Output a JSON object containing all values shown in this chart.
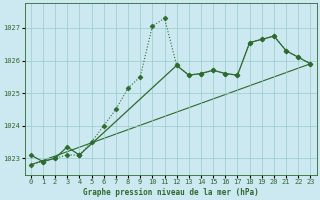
{
  "title": "Graphe pression niveau de la mer (hPa)",
  "background_color": "#cce8f0",
  "grid_color": "#99cccc",
  "line_color": "#2d6a2d",
  "x": [
    0,
    1,
    2,
    3,
    4,
    5,
    6,
    7,
    8,
    9,
    10,
    11,
    12,
    13,
    14,
    15,
    16,
    17,
    18,
    19,
    20,
    21,
    22,
    23
  ],
  "dotted": [
    1022.8,
    1022.9,
    1023.0,
    1023.1,
    1023.1,
    1023.5,
    1024.0,
    1024.5,
    1025.15,
    1025.5,
    1027.05,
    1027.3,
    1025.85,
    1025.55,
    1025.6,
    1025.7,
    1025.6,
    1025.55,
    1026.55,
    1026.65,
    1026.75,
    1026.3,
    1026.1,
    1025.9
  ],
  "solid_seg1_x": [
    0,
    1,
    2,
    3,
    4
  ],
  "solid_seg1_y": [
    1023.1,
    1022.9,
    1023.0,
    1023.35,
    1023.1
  ],
  "solid_seg2_x": [
    4,
    12,
    13,
    14,
    15,
    16,
    17,
    18,
    19,
    20,
    21,
    22,
    23
  ],
  "solid_seg2_y": [
    1023.1,
    1025.85,
    1025.55,
    1025.6,
    1025.7,
    1025.6,
    1025.55,
    1026.55,
    1026.65,
    1026.75,
    1026.3,
    1026.1,
    1025.9
  ],
  "trend_x": [
    0,
    23
  ],
  "trend_y": [
    1022.8,
    1025.9
  ],
  "ylim": [
    1022.5,
    1027.75
  ],
  "yticks": [
    1023,
    1024,
    1025,
    1026,
    1027
  ],
  "xlim": [
    -0.5,
    23.5
  ],
  "xticks": [
    0,
    1,
    2,
    3,
    4,
    5,
    6,
    7,
    8,
    9,
    10,
    11,
    12,
    13,
    14,
    15,
    16,
    17,
    18,
    19,
    20,
    21,
    22,
    23
  ]
}
